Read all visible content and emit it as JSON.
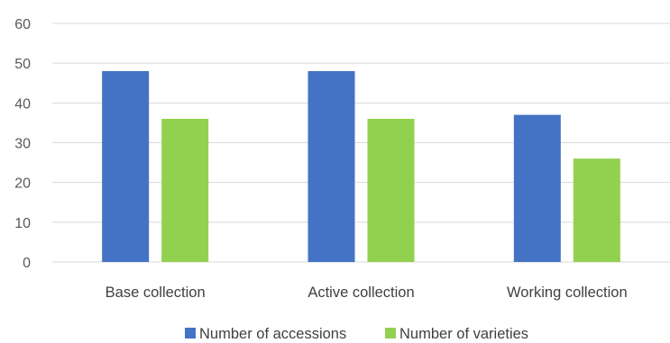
{
  "chart_data": {
    "type": "bar",
    "title": "",
    "xlabel": "",
    "ylabel": "",
    "categories": [
      "Base collection",
      "Active collection",
      "Working collection"
    ],
    "series": [
      {
        "name": "Number of accessions",
        "values": [
          48,
          48,
          37
        ],
        "color": "#4472C4"
      },
      {
        "name": "Number of varieties",
        "values": [
          36,
          36,
          26
        ],
        "color": "#92D050"
      }
    ],
    "ylim": [
      0,
      60
    ],
    "yticks": [
      "0",
      "10",
      "20",
      "30",
      "40",
      "50",
      "60"
    ],
    "grid": true,
    "gridline_color": "#D9D9D9",
    "legend_position": "bottom-center"
  }
}
